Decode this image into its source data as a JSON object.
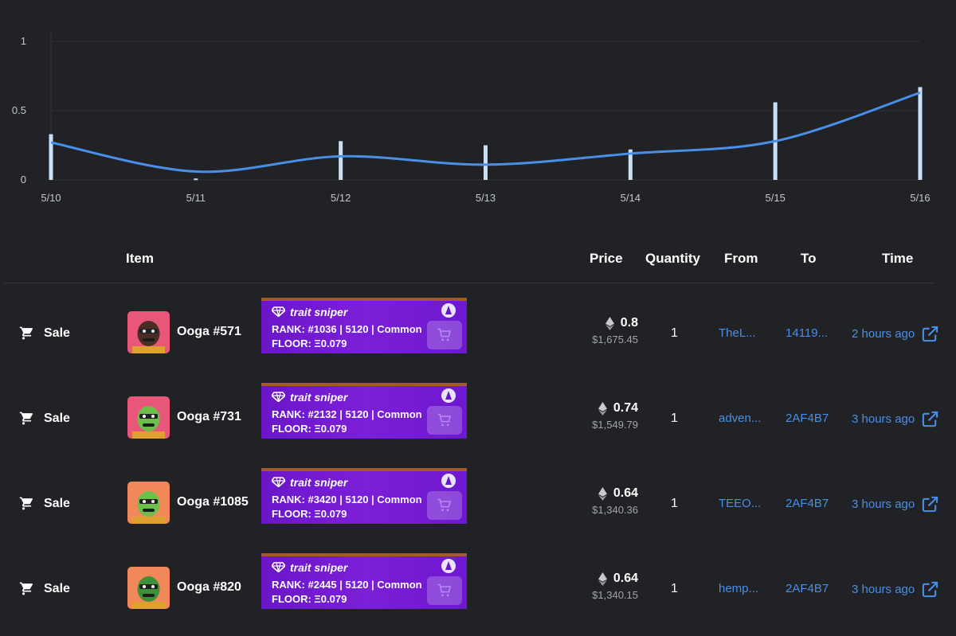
{
  "chart_data": {
    "type": "bar",
    "categories": [
      "5/10",
      "5/11",
      "5/12",
      "5/13",
      "5/14",
      "5/15",
      "5/16"
    ],
    "series": [
      {
        "values": [
          0.33,
          0.01,
          0.28,
          0.25,
          0.22,
          0.56,
          0.67
        ]
      },
      {
        "type": "line",
        "values": [
          0.27,
          0.06,
          0.17,
          0.11,
          0.19,
          0.28,
          0.63
        ]
      }
    ],
    "yticks": [
      "0",
      "0.5",
      "1"
    ],
    "ylim": [
      0,
      1
    ],
    "grid": true,
    "bar_color": "#c9dff8",
    "line_color": "#4a8fe7"
  },
  "table": {
    "headers": {
      "item": "Item",
      "price": "Price",
      "quantity": "Quantity",
      "from": "From",
      "to": "To",
      "time": "Time"
    },
    "rows": [
      {
        "event": "Sale",
        "name": "Ooga #571",
        "ts_title": "trait sniper",
        "rank": "RANK:  #1036 | 5120 | Common",
        "floor": "FLOOR:  Ξ0.079",
        "price": "0.8",
        "usd": "$1,675.45",
        "qty": "1",
        "from": "TheL...",
        "to": "14119...",
        "time": "2 hours ago",
        "bg": "#e8577a",
        "face": "#4a2e25"
      },
      {
        "event": "Sale",
        "name": "Ooga #731",
        "ts_title": "trait sniper",
        "rank": "RANK:  #2132 | 5120 | Common",
        "floor": "FLOOR:  Ξ0.079",
        "price": "0.74",
        "usd": "$1,549.79",
        "qty": "1",
        "from": "adven...",
        "to": "2AF4B7",
        "time": "3 hours ago",
        "bg": "#e8577a",
        "face": "#6bc04a"
      },
      {
        "event": "Sale",
        "name": "Ooga #1085",
        "ts_title": "trait sniper",
        "rank": "RANK:  #3420 | 5120 | Common",
        "floor": "FLOOR:  Ξ0.079",
        "price": "0.64",
        "usd": "$1,340.36",
        "qty": "1",
        "from": "TEEO...",
        "to": "2AF4B7",
        "time": "3 hours ago",
        "bg": "#f0885a",
        "face": "#6bc04a"
      },
      {
        "event": "Sale",
        "name": "Ooga #820",
        "ts_title": "trait sniper",
        "rank": "RANK:  #2445 | 5120 | Common",
        "floor": "FLOOR:  Ξ0.079",
        "price": "0.64",
        "usd": "$1,340.15",
        "qty": "1",
        "from": "hemp...",
        "to": "2AF4B7",
        "time": "3 hours ago",
        "bg": "#f0885a",
        "face": "#3f8f3a"
      }
    ]
  },
  "icons": {
    "event": "cart-icon",
    "currency": "eth-icon",
    "external": "external-link-icon",
    "gem": "diamond-icon"
  }
}
